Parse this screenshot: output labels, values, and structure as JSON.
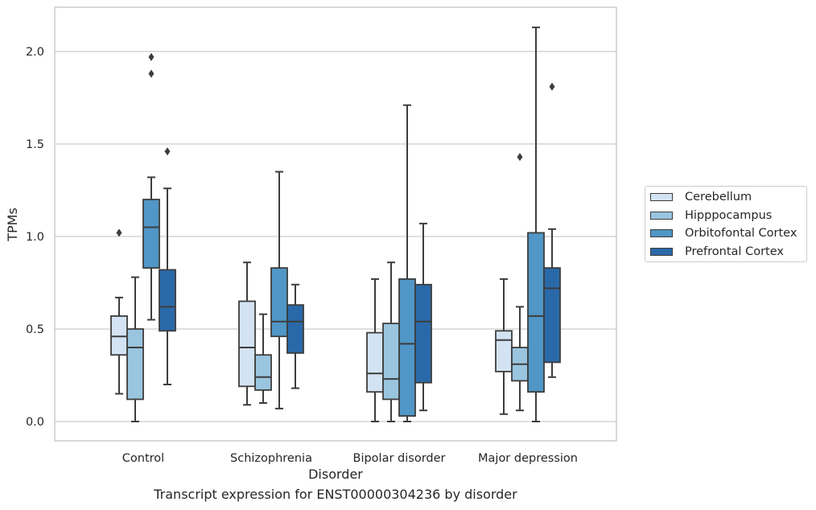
{
  "caption": "Transcript expression for ENST00000304236 by disorder",
  "chart_data": {
    "type": "boxplot",
    "xlabel": "Disorder",
    "ylabel": "TPMs",
    "ylim": [
      -0.1,
      2.25
    ],
    "yticks": [
      "0.0",
      "0.5",
      "1.0",
      "1.5",
      "2.0"
    ],
    "grid": "horizontal",
    "legend_position": "right",
    "categories": [
      "Control",
      "Schizophrenia",
      "Bipolar disorder",
      "Major depression"
    ],
    "series": [
      {
        "name": "Cerebellum",
        "color": "#d3e3f3",
        "boxes": [
          {
            "whisker_low": 0.15,
            "q1": 0.36,
            "median": 0.46,
            "q3": 0.57,
            "whisker_high": 0.67,
            "outliers": [
              1.02
            ]
          },
          {
            "whisker_low": 0.09,
            "q1": 0.19,
            "median": 0.4,
            "q3": 0.65,
            "whisker_high": 0.86,
            "outliers": []
          },
          {
            "whisker_low": 0.0,
            "q1": 0.16,
            "median": 0.26,
            "q3": 0.48,
            "whisker_high": 0.77,
            "outliers": []
          },
          {
            "whisker_low": 0.04,
            "q1": 0.27,
            "median": 0.44,
            "q3": 0.49,
            "whisker_high": 0.77,
            "outliers": []
          }
        ]
      },
      {
        "name": "Hipppocampus",
        "color": "#9ac5df",
        "boxes": [
          {
            "whisker_low": 0.0,
            "q1": 0.12,
            "median": 0.4,
            "q3": 0.5,
            "whisker_high": 0.78,
            "outliers": []
          },
          {
            "whisker_low": 0.1,
            "q1": 0.17,
            "median": 0.24,
            "q3": 0.36,
            "whisker_high": 0.58,
            "outliers": []
          },
          {
            "whisker_low": 0.0,
            "q1": 0.12,
            "median": 0.23,
            "q3": 0.53,
            "whisker_high": 0.86,
            "outliers": []
          },
          {
            "whisker_low": 0.06,
            "q1": 0.22,
            "median": 0.31,
            "q3": 0.4,
            "whisker_high": 0.62,
            "outliers": [
              1.43
            ]
          }
        ]
      },
      {
        "name": "Orbitofontal Cortex",
        "color": "#5096c6",
        "boxes": [
          {
            "whisker_low": 0.55,
            "q1": 0.83,
            "median": 1.05,
            "q3": 1.2,
            "whisker_high": 1.32,
            "outliers": [
              1.88,
              1.97
            ]
          },
          {
            "whisker_low": 0.07,
            "q1": 0.46,
            "median": 0.54,
            "q3": 0.83,
            "whisker_high": 1.35,
            "outliers": []
          },
          {
            "whisker_low": 0.0,
            "q1": 0.03,
            "median": 0.42,
            "q3": 0.77,
            "whisker_high": 1.71,
            "outliers": []
          },
          {
            "whisker_low": 0.0,
            "q1": 0.16,
            "median": 0.57,
            "q3": 1.02,
            "whisker_high": 2.13,
            "outliers": []
          }
        ]
      },
      {
        "name": "Prefrontal Cortex",
        "color": "#2a69a9",
        "boxes": [
          {
            "whisker_low": 0.2,
            "q1": 0.49,
            "median": 0.62,
            "q3": 0.82,
            "whisker_high": 1.26,
            "outliers": [
              1.46
            ]
          },
          {
            "whisker_low": 0.18,
            "q1": 0.37,
            "median": 0.54,
            "q3": 0.63,
            "whisker_high": 0.74,
            "outliers": []
          },
          {
            "whisker_low": 0.06,
            "q1": 0.21,
            "median": 0.54,
            "q3": 0.74,
            "whisker_high": 1.07,
            "outliers": []
          },
          {
            "whisker_low": 0.24,
            "q1": 0.32,
            "median": 0.72,
            "q3": 0.83,
            "whisker_high": 1.04,
            "outliers": [
              1.81
            ]
          }
        ]
      }
    ]
  }
}
